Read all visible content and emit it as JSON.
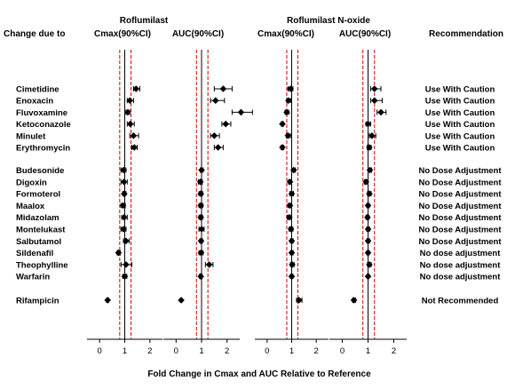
{
  "headers": {
    "change_due_to": "Change due to",
    "group1": "Roflumilast",
    "group2": "Roflumilast N-oxide",
    "cmax": "Cmax(90%CI)",
    "auc": "AUC(90%CI)",
    "recommendation": "Recommendation"
  },
  "x_axis_label": "Fold Change in Cmax and AUC Relative to Reference",
  "chart_data": {
    "type": "forest",
    "xlim": [
      -0.5,
      2.5
    ],
    "x_ticks": [
      0,
      1,
      2
    ],
    "reference_line": 1,
    "limit_lines": [
      0.8,
      1.25
    ],
    "panels": [
      {
        "parent": "Roflumilast",
        "name": "Cmax(90%CI)"
      },
      {
        "parent": "Roflumilast",
        "name": "AUC(90%CI)"
      },
      {
        "parent": "Roflumilast N-oxide",
        "name": "Cmax(90%CI)"
      },
      {
        "parent": "Roflumilast N-oxide",
        "name": "AUC(90%CI)"
      }
    ],
    "rows": [
      {
        "drug": "Cimetidine",
        "recommendation": "Use With Caution",
        "values": [
          [
            1.45,
            1.35,
            1.6
          ],
          [
            1.85,
            1.5,
            2.2
          ],
          [
            0.95,
            0.85,
            1.05
          ],
          [
            1.25,
            1.1,
            1.5
          ]
        ]
      },
      {
        "drug": "Enoxacin",
        "recommendation": "Use With Caution",
        "values": [
          [
            1.2,
            1.1,
            1.35
          ],
          [
            1.55,
            1.35,
            1.9
          ],
          [
            0.87,
            0.8,
            0.97
          ],
          [
            1.25,
            1.1,
            1.55
          ]
        ]
      },
      {
        "drug": "Fluvoxamine",
        "recommendation": "Use With Caution",
        "values": [
          [
            1.12,
            1.05,
            1.2
          ],
          [
            2.55,
            2.2,
            3.0
          ],
          [
            0.8,
            0.73,
            0.88
          ],
          [
            1.5,
            1.35,
            1.7
          ]
        ]
      },
      {
        "drug": "Ketoconazole",
        "recommendation": "Use With Caution",
        "values": [
          [
            1.22,
            1.1,
            1.38
          ],
          [
            1.95,
            1.8,
            2.15
          ],
          [
            0.62,
            0.58,
            0.67
          ],
          [
            1.0,
            0.92,
            1.1
          ]
        ]
      },
      {
        "drug": "Minulet",
        "recommendation": "Use With Caution",
        "values": [
          [
            1.35,
            1.2,
            1.55
          ],
          [
            1.5,
            1.35,
            1.7
          ],
          [
            0.85,
            0.78,
            0.95
          ],
          [
            1.15,
            1.05,
            1.3
          ]
        ]
      },
      {
        "drug": "Erythromycin",
        "recommendation": "Use With Caution",
        "values": [
          [
            1.38,
            1.28,
            1.5
          ],
          [
            1.65,
            1.5,
            1.85
          ],
          [
            0.62,
            0.57,
            0.68
          ],
          [
            1.05,
            0.97,
            1.12
          ]
        ]
      },
      {
        "drug": "Budesonide",
        "recommendation": "No Dose Adjustment",
        "values": [
          [
            0.95,
            0.85,
            1.05
          ],
          [
            1.0,
            0.95,
            1.06
          ],
          [
            1.08,
            1.0,
            1.15
          ],
          [
            1.07,
            1.0,
            1.14
          ]
        ]
      },
      {
        "drug": "Digoxin",
        "recommendation": "No Dose Adjustment",
        "values": [
          [
            0.97,
            0.85,
            1.1
          ],
          [
            0.95,
            0.88,
            1.03
          ],
          [
            0.93,
            0.87,
            1.0
          ],
          [
            0.92,
            0.86,
            0.98
          ]
        ]
      },
      {
        "drug": "Formoterol",
        "recommendation": "No Dose Adjustment",
        "values": [
          [
            0.98,
            0.92,
            1.05
          ],
          [
            0.97,
            0.9,
            1.04
          ],
          [
            1.0,
            0.93,
            1.07
          ],
          [
            1.05,
            0.98,
            1.12
          ]
        ]
      },
      {
        "drug": "Maalox",
        "recommendation": "No Dose Adjustment",
        "values": [
          [
            0.93,
            0.85,
            1.02
          ],
          [
            0.97,
            0.9,
            1.05
          ],
          [
            0.93,
            0.85,
            1.0
          ],
          [
            1.0,
            0.95,
            1.05
          ]
        ]
      },
      {
        "drug": "Midazolam",
        "recommendation": "No Dose Adjustment",
        "values": [
          [
            0.98,
            0.88,
            1.1
          ],
          [
            0.97,
            0.9,
            1.04
          ],
          [
            0.9,
            0.82,
            0.98
          ],
          [
            0.98,
            0.92,
            1.04
          ]
        ]
      },
      {
        "drug": "Montelukast",
        "recommendation": "No Dose Adjustment",
        "values": [
          [
            0.95,
            0.85,
            1.05
          ],
          [
            1.0,
            0.9,
            1.1
          ],
          [
            0.97,
            0.9,
            1.05
          ],
          [
            1.0,
            0.95,
            1.06
          ]
        ]
      },
      {
        "drug": "Salbutamol",
        "recommendation": "No Dose Adjustment",
        "values": [
          [
            1.05,
            0.95,
            1.18
          ],
          [
            0.98,
            0.93,
            1.04
          ],
          [
            1.0,
            0.95,
            1.06
          ],
          [
            1.0,
            0.96,
            1.06
          ]
        ]
      },
      {
        "drug": "Sildenafil",
        "recommendation": "No dose adjustment",
        "values": [
          [
            0.75,
            0.7,
            0.82
          ],
          [
            0.98,
            0.9,
            1.06
          ],
          [
            1.0,
            0.95,
            1.06
          ],
          [
            1.0,
            0.95,
            1.05
          ]
        ]
      },
      {
        "drug": "Theophylline",
        "recommendation": "No dose adjustment",
        "values": [
          [
            1.05,
            0.85,
            1.28
          ],
          [
            1.3,
            1.15,
            1.45
          ],
          [
            1.02,
            0.95,
            1.1
          ],
          [
            1.05,
            0.98,
            1.12
          ]
        ]
      },
      {
        "drug": "Warfarin",
        "recommendation": "No dose adjustment",
        "values": [
          [
            1.0,
            0.92,
            1.08
          ],
          [
            0.97,
            0.92,
            1.02
          ],
          [
            1.0,
            0.95,
            1.05
          ],
          [
            1.0,
            0.96,
            1.04
          ]
        ]
      },
      {
        "drug": "Rifampicin",
        "recommendation": "Not Recommended",
        "values": [
          [
            0.32,
            0.28,
            0.36
          ],
          [
            0.2,
            0.17,
            0.23
          ],
          [
            1.3,
            1.2,
            1.42
          ],
          [
            0.45,
            0.4,
            0.52
          ]
        ]
      }
    ]
  },
  "colors": {
    "limit_line": "#cc0000",
    "ink": "#000000"
  }
}
